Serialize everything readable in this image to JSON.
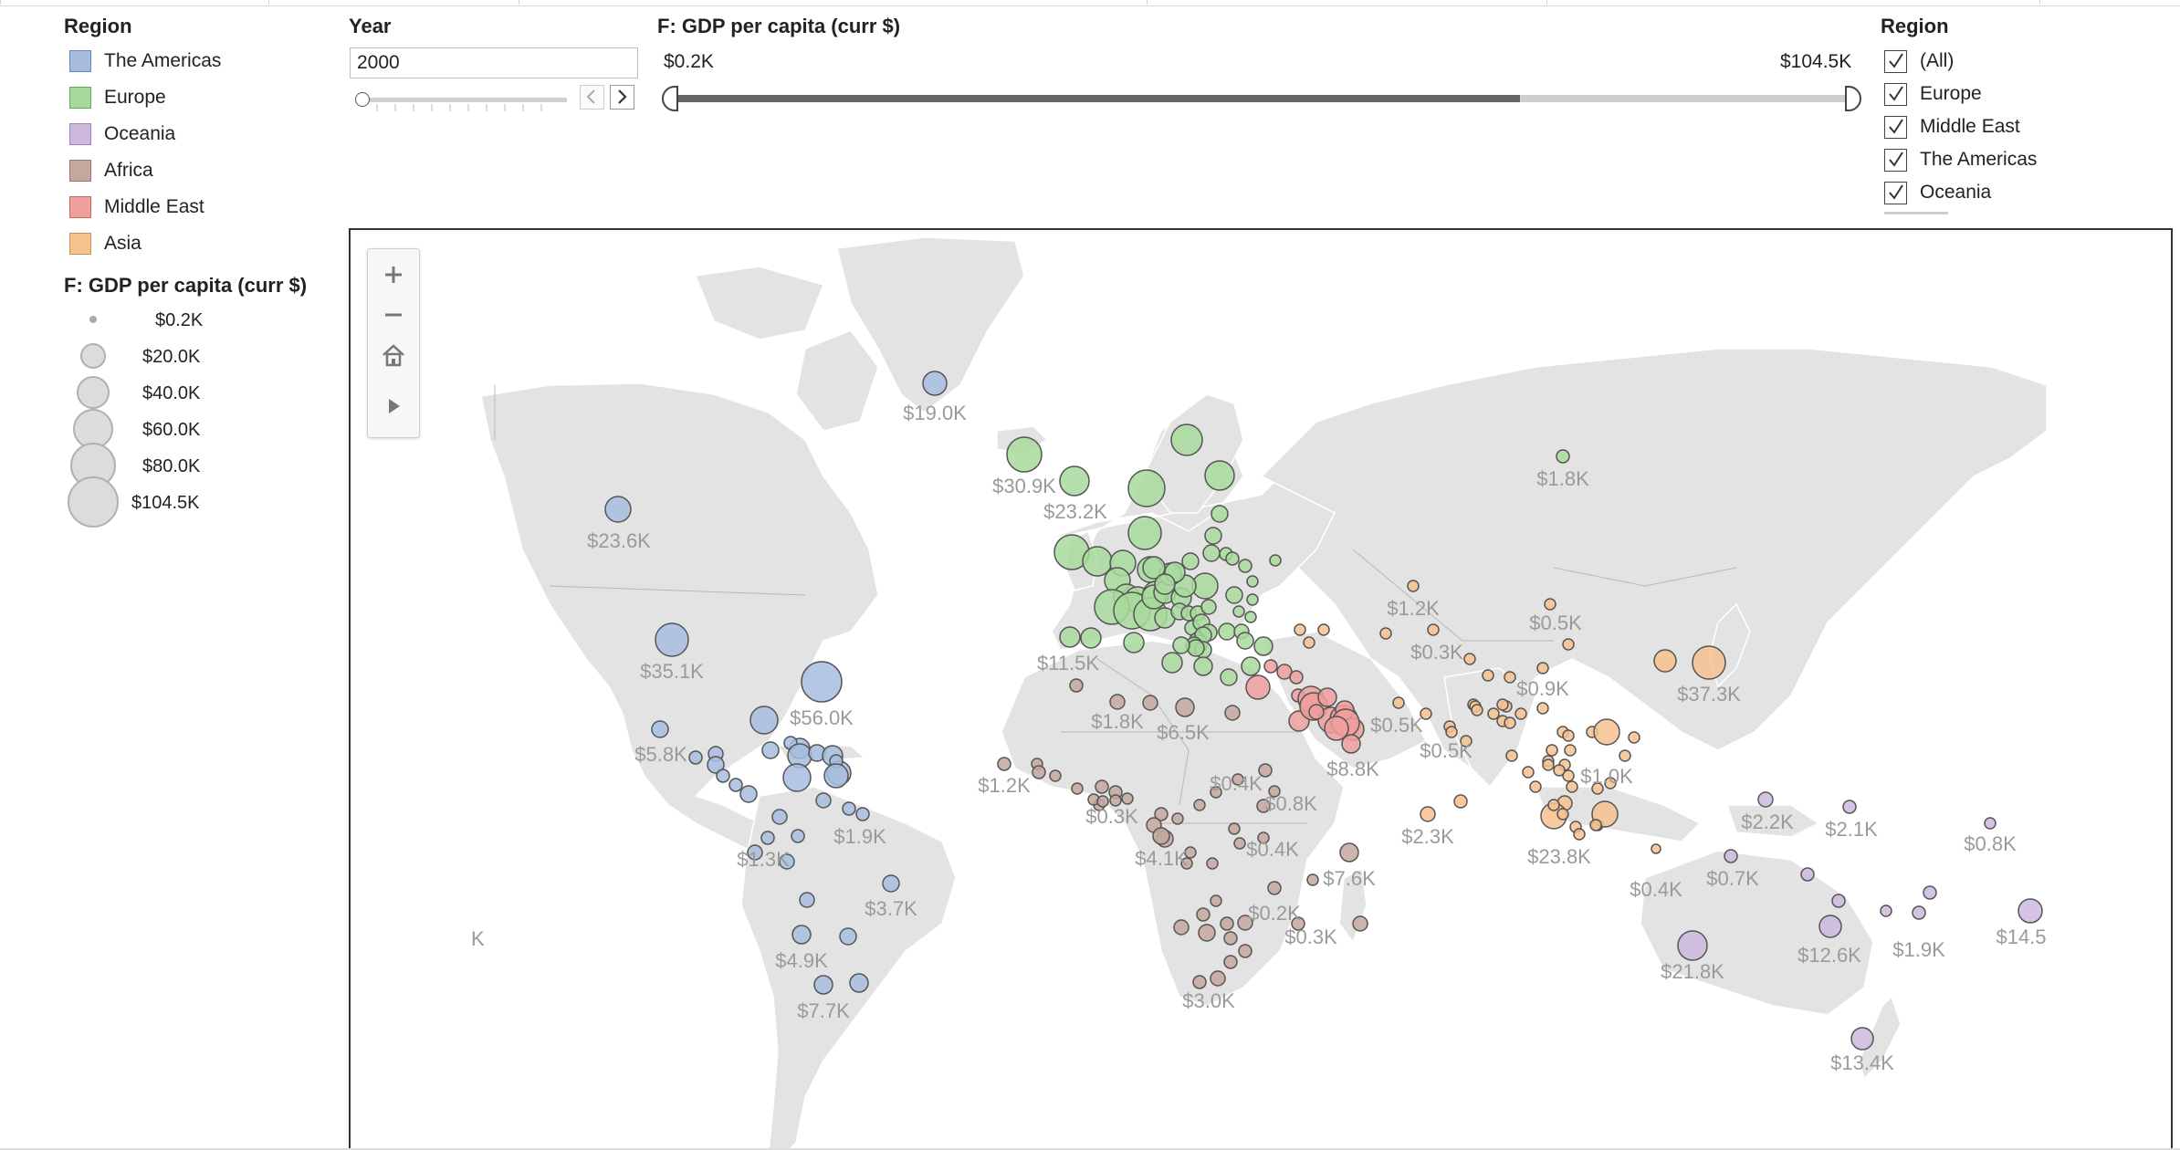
{
  "legend": {
    "color_title": "Region",
    "regions": [
      {
        "name": "The Americas",
        "color": "#a7bde0",
        "border": "#6c86b8"
      },
      {
        "name": "Europe",
        "color": "#a8d99c",
        "border": "#6aa55e"
      },
      {
        "name": "Oceania",
        "color": "#cdb9de",
        "border": "#9c85b3"
      },
      {
        "name": "Africa",
        "color": "#c4a89f",
        "border": "#93766c"
      },
      {
        "name": "Middle East",
        "color": "#ef9f9c",
        "border": "#c56764"
      },
      {
        "name": "Asia",
        "color": "#f6c28e",
        "border": "#cd9155"
      }
    ],
    "size_title": "F: GDP per capita (curr $)",
    "sizes": [
      "$0.2K",
      "$20.0K",
      "$40.0K",
      "$60.0K",
      "$80.0K",
      "$104.5K"
    ]
  },
  "year_filter": {
    "title": "Year",
    "value": "2000",
    "prev_icon": "chevron-left-icon",
    "next_icon": "chevron-right-icon"
  },
  "gdp_filter": {
    "title": "F: GDP per capita (curr $)",
    "min_label": "$0.2K",
    "max_label": "$104.5K"
  },
  "region_filter": {
    "title": "Region",
    "items": [
      {
        "label": "(All)",
        "checked": true
      },
      {
        "label": "Europe",
        "checked": true
      },
      {
        "label": "Middle East",
        "checked": true
      },
      {
        "label": "The Americas",
        "checked": true
      },
      {
        "label": "Oceania",
        "checked": true
      }
    ]
  },
  "map": {
    "tools": [
      "plus-icon",
      "minus-icon",
      "home-icon",
      "play-icon"
    ],
    "edge_label": "K",
    "bubble_labels": [
      {
        "text": "$19.0K",
        "region": "The Americas"
      },
      {
        "text": "$23.6K",
        "region": "The Americas"
      },
      {
        "text": "$35.1K",
        "region": "The Americas"
      },
      {
        "text": "$56.0K",
        "region": "The Americas"
      },
      {
        "text": "$5.8K",
        "region": "The Americas"
      },
      {
        "text": "$1.3K",
        "region": "The Americas"
      },
      {
        "text": "$1.9K",
        "region": "The Americas"
      },
      {
        "text": "$3.7K",
        "region": "The Americas"
      },
      {
        "text": "$4.9K",
        "region": "The Americas"
      },
      {
        "text": "$7.7K",
        "region": "The Americas"
      },
      {
        "text": "$30.9K",
        "region": "Europe"
      },
      {
        "text": "$23.2K",
        "region": "Europe"
      },
      {
        "text": "$11.5K",
        "region": "Europe"
      },
      {
        "text": "$1.8K",
        "region": "Europe"
      },
      {
        "text": "$1.2K",
        "region": "Asia"
      },
      {
        "text": "$0.5K",
        "region": "Asia"
      },
      {
        "text": "$0.3K",
        "region": "Asia"
      },
      {
        "text": "$0.9K",
        "region": "Asia"
      },
      {
        "text": "$37.3K",
        "region": "Asia"
      },
      {
        "text": "$0.5K",
        "region": "Asia"
      },
      {
        "text": "$0.5K",
        "region": "Asia"
      },
      {
        "text": "$1.0K",
        "region": "Asia"
      },
      {
        "text": "$2.3K",
        "region": "Asia"
      },
      {
        "text": "$23.8K",
        "region": "Asia"
      },
      {
        "text": "$0.4K",
        "region": "Asia"
      },
      {
        "text": "$1.8K",
        "region": "Africa"
      },
      {
        "text": "$6.5K",
        "region": "Africa"
      },
      {
        "text": "$1.2K",
        "region": "Africa"
      },
      {
        "text": "$0.4K",
        "region": "Africa"
      },
      {
        "text": "$0.8K",
        "region": "Africa"
      },
      {
        "text": "$0.3K",
        "region": "Africa"
      },
      {
        "text": "$4.1K",
        "region": "Africa"
      },
      {
        "text": "$0.4K",
        "region": "Africa"
      },
      {
        "text": "$7.6K",
        "region": "Africa"
      },
      {
        "text": "$0.2K",
        "region": "Africa"
      },
      {
        "text": "$0.3K",
        "region": "Africa"
      },
      {
        "text": "$3.0K",
        "region": "Africa"
      },
      {
        "text": "$8.8K",
        "region": "Middle East"
      },
      {
        "text": "$2.2K",
        "region": "Oceania"
      },
      {
        "text": "$2.1K",
        "region": "Oceania"
      },
      {
        "text": "$0.8K",
        "region": "Oceania"
      },
      {
        "text": "$0.7K",
        "region": "Oceania"
      },
      {
        "text": "$14.5",
        "region": "Oceania"
      },
      {
        "text": "$12.6K",
        "region": "Oceania"
      },
      {
        "text": "$1.9K",
        "region": "Oceania"
      },
      {
        "text": "$21.8K",
        "region": "Oceania"
      },
      {
        "text": "$13.4K",
        "region": "Oceania"
      }
    ]
  }
}
